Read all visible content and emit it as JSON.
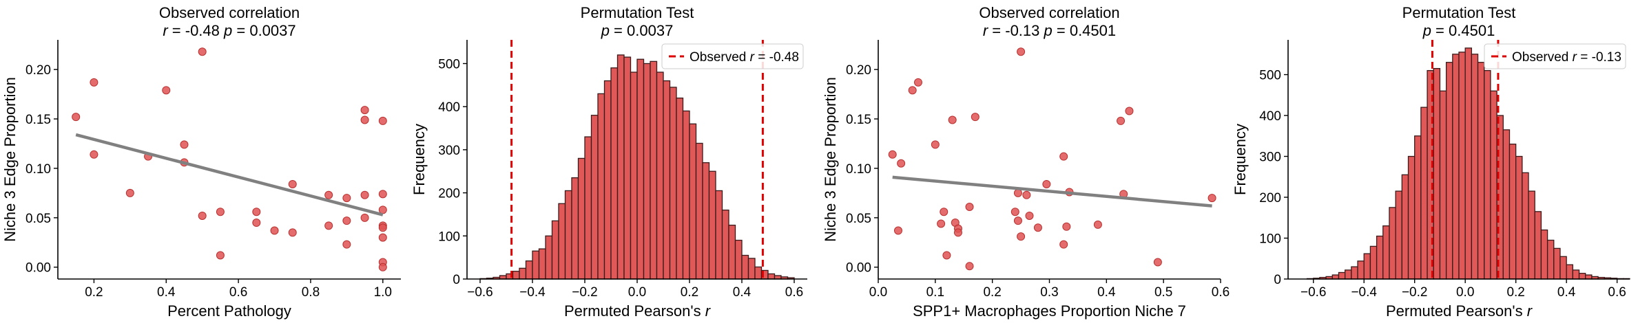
{
  "chart_data": [
    {
      "type": "scatter",
      "title_line1": "Observed correlation",
      "title_line2": "r = -0.48  p = 0.0037",
      "xlabel": "Percent Pathology",
      "ylabel": "Niche 3 Edge Proportion",
      "xlim": [
        0.1,
        1.05
      ],
      "ylim": [
        -0.012,
        0.23
      ],
      "xticks": [
        0.2,
        0.4,
        0.6,
        0.8,
        1.0
      ],
      "xtick_labels": [
        "0.2",
        "0.4",
        "0.6",
        "0.8",
        "1.0"
      ],
      "yticks": [
        0.0,
        0.05,
        0.1,
        0.15,
        0.2
      ],
      "ytick_labels": [
        "0.00",
        "0.05",
        "0.10",
        "0.15",
        "0.20"
      ],
      "point_color": "#e05252",
      "line_color": "#808080",
      "fit_line": {
        "x": [
          0.15,
          1.0
        ],
        "y": [
          0.134,
          0.053
        ]
      },
      "points": [
        {
          "x": 0.15,
          "y": 0.152
        },
        {
          "x": 0.2,
          "y": 0.187
        },
        {
          "x": 0.2,
          "y": 0.114
        },
        {
          "x": 0.3,
          "y": 0.075
        },
        {
          "x": 0.35,
          "y": 0.112
        },
        {
          "x": 0.4,
          "y": 0.179
        },
        {
          "x": 0.45,
          "y": 0.124
        },
        {
          "x": 0.45,
          "y": 0.106
        },
        {
          "x": 0.5,
          "y": 0.218
        },
        {
          "x": 0.5,
          "y": 0.052
        },
        {
          "x": 0.55,
          "y": 0.056
        },
        {
          "x": 0.55,
          "y": 0.012
        },
        {
          "x": 0.65,
          "y": 0.056
        },
        {
          "x": 0.65,
          "y": 0.045
        },
        {
          "x": 0.7,
          "y": 0.037
        },
        {
          "x": 0.75,
          "y": 0.084
        },
        {
          "x": 0.75,
          "y": 0.035
        },
        {
          "x": 0.85,
          "y": 0.073
        },
        {
          "x": 0.85,
          "y": 0.042
        },
        {
          "x": 0.9,
          "y": 0.07
        },
        {
          "x": 0.9,
          "y": 0.047
        },
        {
          "x": 0.9,
          "y": 0.023
        },
        {
          "x": 0.95,
          "y": 0.159
        },
        {
          "x": 0.95,
          "y": 0.149
        },
        {
          "x": 0.95,
          "y": 0.073
        },
        {
          "x": 0.95,
          "y": 0.05
        },
        {
          "x": 1.0,
          "y": 0.148
        },
        {
          "x": 1.0,
          "y": 0.074
        },
        {
          "x": 1.0,
          "y": 0.058
        },
        {
          "x": 1.0,
          "y": 0.042
        },
        {
          "x": 1.0,
          "y": 0.04
        },
        {
          "x": 1.0,
          "y": 0.03
        },
        {
          "x": 1.0,
          "y": 0.005
        },
        {
          "x": 1.0,
          "y": 0.0
        }
      ]
    },
    {
      "type": "bar",
      "subtype": "histogram",
      "title_line1": "Permutation Test",
      "title_line2": "p = 0.0037",
      "xlabel": "Permuted Pearson's r",
      "ylabel": "Frequency",
      "xlim": [
        -0.65,
        0.65
      ],
      "ylim": [
        0,
        555
      ],
      "xticks": [
        -0.6,
        -0.4,
        -0.2,
        0.0,
        0.2,
        0.4,
        0.6
      ],
      "xtick_labels": [
        "−0.6",
        "−0.4",
        "−0.2",
        "0.0",
        "0.2",
        "0.4",
        "0.6"
      ],
      "yticks": [
        0,
        100,
        200,
        300,
        400,
        500
      ],
      "ytick_labels": [
        "0",
        "100",
        "200",
        "300",
        "400",
        "500"
      ],
      "bar_color": "#e05858",
      "edge_color": "#3a1a1a",
      "bin_start": -0.6,
      "bin_width": 0.025,
      "counts": [
        1,
        2,
        4,
        8,
        12,
        18,
        25,
        42,
        65,
        70,
        100,
        135,
        175,
        205,
        235,
        280,
        330,
        380,
        430,
        460,
        490,
        520,
        515,
        480,
        510,
        500,
        505,
        480,
        460,
        445,
        420,
        390,
        360,
        315,
        270,
        250,
        205,
        160,
        125,
        90,
        55,
        48,
        28,
        20,
        12,
        8,
        5,
        3
      ],
      "observed_lines": [
        -0.48,
        0.48
      ],
      "observed_line_color": "#e00000",
      "legend": {
        "label": "Observed r = -0.48",
        "position": "top-right"
      }
    },
    {
      "type": "scatter",
      "title_line1": "Observed correlation",
      "title_line2": "r = -0.13  p = 0.4501",
      "xlabel": "SPP1+ Macrophages Proportion Niche 7",
      "ylabel": "Niche 3 Edge Proportion",
      "xlim": [
        0.0,
        0.6
      ],
      "ylim": [
        -0.012,
        0.23
      ],
      "xticks": [
        0.0,
        0.1,
        0.2,
        0.3,
        0.4,
        0.5,
        0.6
      ],
      "xtick_labels": [
        "0.0",
        "0.1",
        "0.2",
        "0.3",
        "0.4",
        "0.5",
        "0.6"
      ],
      "yticks": [
        0.0,
        0.05,
        0.1,
        0.15,
        0.2
      ],
      "ytick_labels": [
        "0.00",
        "0.05",
        "0.10",
        "0.15",
        "0.20"
      ],
      "point_color": "#e05252",
      "line_color": "#808080",
      "fit_line": {
        "x": [
          0.025,
          0.585
        ],
        "y": [
          0.091,
          0.062
        ]
      },
      "points": [
        {
          "x": 0.025,
          "y": 0.114
        },
        {
          "x": 0.035,
          "y": 0.037
        },
        {
          "x": 0.04,
          "y": 0.105
        },
        {
          "x": 0.06,
          "y": 0.179
        },
        {
          "x": 0.07,
          "y": 0.187
        },
        {
          "x": 0.1,
          "y": 0.124
        },
        {
          "x": 0.11,
          "y": 0.044
        },
        {
          "x": 0.115,
          "y": 0.056
        },
        {
          "x": 0.12,
          "y": 0.012
        },
        {
          "x": 0.13,
          "y": 0.149
        },
        {
          "x": 0.135,
          "y": 0.045
        },
        {
          "x": 0.14,
          "y": 0.039
        },
        {
          "x": 0.14,
          "y": 0.035
        },
        {
          "x": 0.16,
          "y": 0.061
        },
        {
          "x": 0.16,
          "y": 0.001
        },
        {
          "x": 0.17,
          "y": 0.152
        },
        {
          "x": 0.24,
          "y": 0.056
        },
        {
          "x": 0.245,
          "y": 0.075
        },
        {
          "x": 0.245,
          "y": 0.047
        },
        {
          "x": 0.25,
          "y": 0.218
        },
        {
          "x": 0.25,
          "y": 0.031
        },
        {
          "x": 0.26,
          "y": 0.073
        },
        {
          "x": 0.265,
          "y": 0.052
        },
        {
          "x": 0.28,
          "y": 0.04
        },
        {
          "x": 0.295,
          "y": 0.084
        },
        {
          "x": 0.325,
          "y": 0.112
        },
        {
          "x": 0.325,
          "y": 0.023
        },
        {
          "x": 0.33,
          "y": 0.041
        },
        {
          "x": 0.335,
          "y": 0.076
        },
        {
          "x": 0.385,
          "y": 0.043
        },
        {
          "x": 0.425,
          "y": 0.148
        },
        {
          "x": 0.43,
          "y": 0.074
        },
        {
          "x": 0.44,
          "y": 0.158
        },
        {
          "x": 0.49,
          "y": 0.005
        },
        {
          "x": 0.585,
          "y": 0.07
        }
      ]
    },
    {
      "type": "bar",
      "subtype": "histogram",
      "title_line1": "Permutation Test",
      "title_line2": "p = 0.4501",
      "xlabel": "Permuted Pearson's r",
      "ylabel": "Frequency",
      "xlim": [
        -0.7,
        0.65
      ],
      "ylim": [
        0,
        585
      ],
      "xticks": [
        -0.6,
        -0.4,
        -0.2,
        0.0,
        0.2,
        0.4,
        0.6
      ],
      "xtick_labels": [
        "−0.6",
        "−0.4",
        "−0.2",
        "0.0",
        "0.2",
        "0.4",
        "0.6"
      ],
      "yticks": [
        0,
        100,
        200,
        300,
        400,
        500
      ],
      "ytick_labels": [
        "0",
        "100",
        "200",
        "300",
        "400",
        "500"
      ],
      "bar_color": "#e05858",
      "edge_color": "#3a1a1a",
      "bin_start": -0.625,
      "bin_width": 0.025,
      "counts": [
        1,
        2,
        4,
        6,
        10,
        16,
        22,
        30,
        44,
        62,
        80,
        105,
        130,
        175,
        215,
        255,
        300,
        350,
        420,
        510,
        515,
        460,
        530,
        550,
        555,
        565,
        550,
        530,
        510,
        460,
        400,
        365,
        330,
        300,
        260,
        215,
        165,
        120,
        95,
        75,
        55,
        35,
        22,
        14,
        10,
        6,
        4,
        3,
        2,
        1,
        1
      ],
      "observed_lines": [
        -0.13,
        0.13
      ],
      "observed_line_color": "#e00000",
      "legend": {
        "label": "Observed r = -0.13",
        "position": "top-right"
      }
    }
  ]
}
